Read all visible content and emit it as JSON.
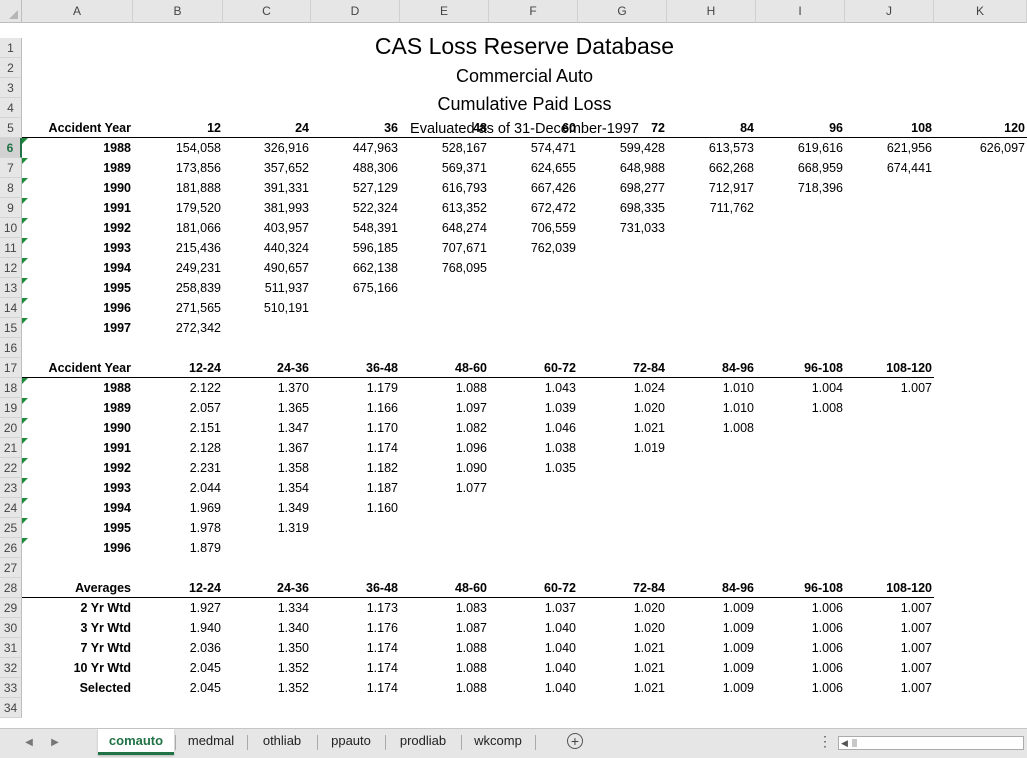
{
  "sheet": {
    "columns": [
      "A",
      "B",
      "C",
      "D",
      "E",
      "F",
      "G",
      "H",
      "I",
      "J",
      "K"
    ],
    "active_column": "A",
    "active_row": 6,
    "header": {
      "title": "CAS Loss Reserve Database",
      "line": "Commercial Auto",
      "measure": "Cumulative Paid Loss",
      "evaluated": "Evaluated as of 31-December-1997"
    },
    "triangle": {
      "label": "Accident Year",
      "ages": [
        "12",
        "24",
        "36",
        "48",
        "60",
        "72",
        "84",
        "96",
        "108",
        "120"
      ],
      "rows": [
        {
          "year": "1988",
          "values": [
            "154,058",
            "326,916",
            "447,963",
            "528,167",
            "574,471",
            "599,428",
            "613,573",
            "619,616",
            "621,956",
            "626,097"
          ]
        },
        {
          "year": "1989",
          "values": [
            "173,856",
            "357,652",
            "488,306",
            "569,371",
            "624,655",
            "648,988",
            "662,268",
            "668,959",
            "674,441"
          ]
        },
        {
          "year": "1990",
          "values": [
            "181,888",
            "391,331",
            "527,129",
            "616,793",
            "667,426",
            "698,277",
            "712,917",
            "718,396"
          ]
        },
        {
          "year": "1991",
          "values": [
            "179,520",
            "381,993",
            "522,324",
            "613,352",
            "672,472",
            "698,335",
            "711,762"
          ]
        },
        {
          "year": "1992",
          "values": [
            "181,066",
            "403,957",
            "548,391",
            "648,274",
            "706,559",
            "731,033"
          ]
        },
        {
          "year": "1993",
          "values": [
            "215,436",
            "440,324",
            "596,185",
            "707,671",
            "762,039"
          ]
        },
        {
          "year": "1994",
          "values": [
            "249,231",
            "490,657",
            "662,138",
            "768,095"
          ]
        },
        {
          "year": "1995",
          "values": [
            "258,839",
            "511,937",
            "675,166"
          ]
        },
        {
          "year": "1996",
          "values": [
            "271,565",
            "510,191"
          ]
        },
        {
          "year": "1997",
          "values": [
            "272,342"
          ]
        }
      ]
    },
    "factors": {
      "label": "Accident Year",
      "periods": [
        "12-24",
        "24-36",
        "36-48",
        "48-60",
        "60-72",
        "72-84",
        "84-96",
        "96-108",
        "108-120"
      ],
      "rows": [
        {
          "year": "1988",
          "values": [
            "2.122",
            "1.370",
            "1.179",
            "1.088",
            "1.043",
            "1.024",
            "1.010",
            "1.004",
            "1.007"
          ]
        },
        {
          "year": "1989",
          "values": [
            "2.057",
            "1.365",
            "1.166",
            "1.097",
            "1.039",
            "1.020",
            "1.010",
            "1.008"
          ]
        },
        {
          "year": "1990",
          "values": [
            "2.151",
            "1.347",
            "1.170",
            "1.082",
            "1.046",
            "1.021",
            "1.008"
          ]
        },
        {
          "year": "1991",
          "values": [
            "2.128",
            "1.367",
            "1.174",
            "1.096",
            "1.038",
            "1.019"
          ]
        },
        {
          "year": "1992",
          "values": [
            "2.231",
            "1.358",
            "1.182",
            "1.090",
            "1.035"
          ]
        },
        {
          "year": "1993",
          "values": [
            "2.044",
            "1.354",
            "1.187",
            "1.077"
          ]
        },
        {
          "year": "1994",
          "values": [
            "1.969",
            "1.349",
            "1.160"
          ]
        },
        {
          "year": "1995",
          "values": [
            "1.978",
            "1.319"
          ]
        },
        {
          "year": "1996",
          "values": [
            "1.879"
          ]
        }
      ]
    },
    "averages": {
      "label": "Averages",
      "periods": [
        "12-24",
        "24-36",
        "36-48",
        "48-60",
        "60-72",
        "72-84",
        "84-96",
        "96-108",
        "108-120"
      ],
      "rows": [
        {
          "name": "2 Yr Wtd",
          "values": [
            "1.927",
            "1.334",
            "1.173",
            "1.083",
            "1.037",
            "1.020",
            "1.009",
            "1.006",
            "1.007"
          ]
        },
        {
          "name": "3 Yr Wtd",
          "values": [
            "1.940",
            "1.340",
            "1.176",
            "1.087",
            "1.040",
            "1.020",
            "1.009",
            "1.006",
            "1.007"
          ]
        },
        {
          "name": "7 Yr Wtd",
          "values": [
            "2.036",
            "1.350",
            "1.174",
            "1.088",
            "1.040",
            "1.021",
            "1.009",
            "1.006",
            "1.007"
          ]
        },
        {
          "name": "10 Yr Wtd",
          "values": [
            "2.045",
            "1.352",
            "1.174",
            "1.088",
            "1.040",
            "1.021",
            "1.009",
            "1.006",
            "1.007"
          ]
        },
        {
          "name": "Selected",
          "values": [
            "2.045",
            "1.352",
            "1.174",
            "1.088",
            "1.040",
            "1.021",
            "1.009",
            "1.006",
            "1.007"
          ]
        }
      ]
    }
  },
  "tabs": {
    "items": [
      "comauto",
      "medmal",
      "othliab",
      "ppauto",
      "prodliab",
      "wkcomp"
    ],
    "active": "comauto",
    "add_icon": "plus-circle-icon"
  }
}
